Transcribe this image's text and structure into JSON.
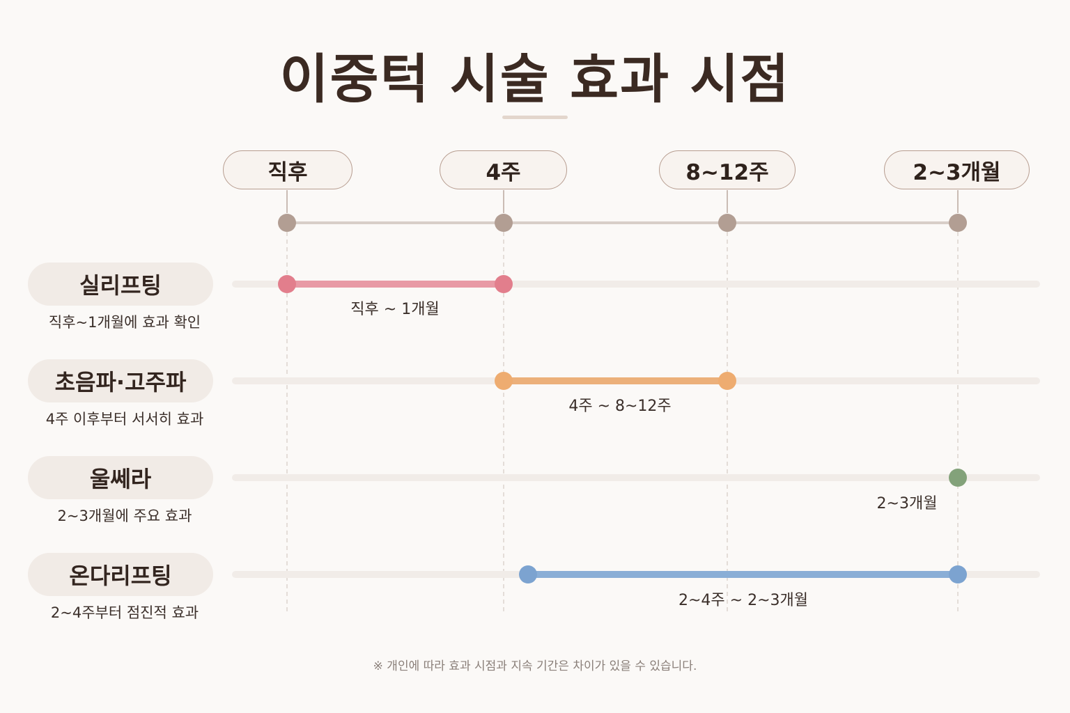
{
  "title": "이중턱 시술 효과 시점",
  "timeline": {
    "points": [
      "직후",
      "4주",
      "8~12주",
      "2~3개월"
    ]
  },
  "rows": [
    {
      "name": "실리프팅",
      "desc": "직후~1개월에 효과 확인",
      "range_label": "직후 ~ 1개월",
      "color": "#e78e9a"
    },
    {
      "name": "초음파·고주파",
      "desc": "4주 이후부터 서서히 효과",
      "range_label": "4주 ~ 8~12주",
      "color": "#ecb07a"
    },
    {
      "name": "울쎄라",
      "desc": "2~3개월에 주요 효과",
      "range_label": "2~3개월",
      "color": "#86a57c"
    },
    {
      "name": "온다리프팅",
      "desc": "2~4주부터 점진적 효과",
      "range_label": "2~4주 ~ 2~3개월",
      "color": "#7ea6d2"
    }
  ],
  "colors": {
    "timeline_node": "#b29e93",
    "track": "#f1ece8",
    "background": "#fbf9f7"
  },
  "footnote": "※ 개인에 따라 효과 시점과 지속 기간은 차이가 있을 수 있습니다."
}
